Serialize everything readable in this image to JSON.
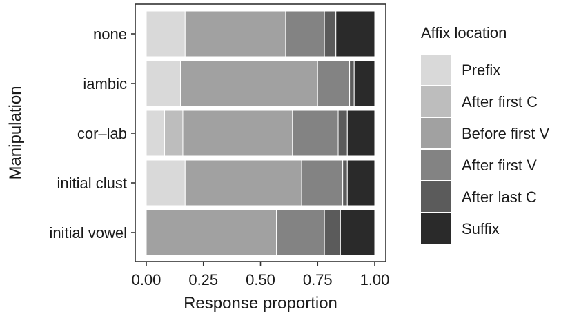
{
  "chart_data": {
    "type": "bar",
    "orientation": "horizontal",
    "stacked": true,
    "xlabel": "Response proportion",
    "ylabel": "Manipulation",
    "xlim": [
      0,
      1
    ],
    "xticks": [
      "0.00",
      "0.25",
      "0.50",
      "0.75",
      "1.00"
    ],
    "grid": false,
    "legend": {
      "title": "Affix location",
      "placement": "right"
    },
    "categories": [
      "none",
      "iambic",
      "cor–lab",
      "initial clust",
      "initial vowel"
    ],
    "series": [
      {
        "name": "Prefix",
        "color": "#d9d9d9",
        "values": [
          0.17,
          0.15,
          0.08,
          0.17,
          0.0
        ]
      },
      {
        "name": "After first C",
        "color": "#bdbdbd",
        "values": [
          0.0,
          0.0,
          0.08,
          0.0,
          0.0
        ]
      },
      {
        "name": "Before first V",
        "color": "#a1a1a1",
        "values": [
          0.44,
          0.6,
          0.48,
          0.51,
          0.57
        ]
      },
      {
        "name": "After first V",
        "color": "#838383",
        "values": [
          0.17,
          0.14,
          0.2,
          0.18,
          0.21
        ]
      },
      {
        "name": "After last C",
        "color": "#5b5b5b",
        "values": [
          0.05,
          0.02,
          0.04,
          0.02,
          0.07
        ]
      },
      {
        "name": "Suffix",
        "color": "#2a2a2a",
        "values": [
          0.17,
          0.09,
          0.12,
          0.12,
          0.15
        ]
      }
    ]
  }
}
